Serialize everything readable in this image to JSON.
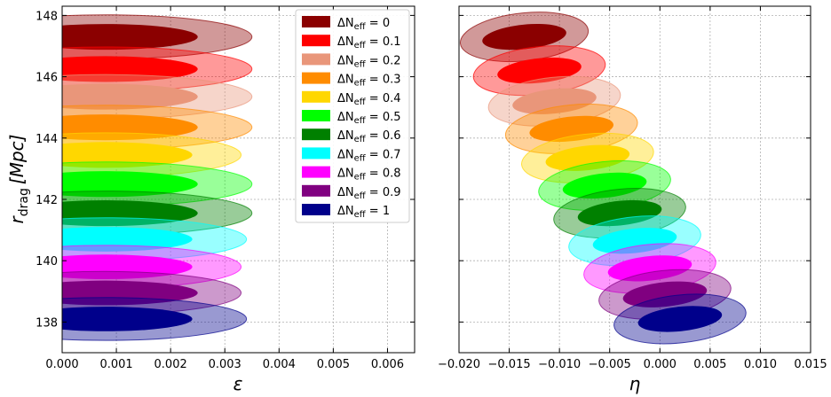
{
  "chart_data": [
    {
      "type": "contour",
      "panel": "left",
      "xlabel": "ε",
      "ylabel_main": "r",
      "ylabel_sub": "drag",
      "ylabel_unit": "[Mpc]",
      "xlim": [
        0.0,
        0.0065
      ],
      "ylim": [
        137.0,
        148.3
      ],
      "xticks": [
        "0.000",
        "0.001",
        "0.002",
        "0.003",
        "0.004",
        "0.005",
        "0.006"
      ],
      "xtick_values": [
        0,
        0.001,
        0.002,
        0.003,
        0.004,
        0.005,
        0.006
      ],
      "yticks": [
        "138",
        "140",
        "142",
        "144",
        "146",
        "148"
      ],
      "ytick_values": [
        138,
        140,
        142,
        144,
        146,
        148
      ],
      "grid": true,
      "legend_position": "top-right",
      "series": [
        {
          "name": "ΔN_eff = 0",
          "label_sym": "ΔN",
          "label_sub": "eff",
          "label_val": " = 0",
          "color": "#8b0000",
          "x_center": 0.0008,
          "y_center": 147.3,
          "x_1sigma": 0.0017,
          "y_1sigma": 0.42,
          "x_2sigma": 0.0027,
          "y_2sigma": 0.72
        },
        {
          "name": "ΔN_eff = 0.1",
          "label_sym": "ΔN",
          "label_sub": "eff",
          "label_val": " = 0.1",
          "color": "#ff0000",
          "x_center": 0.0008,
          "y_center": 146.25,
          "x_1sigma": 0.0017,
          "y_1sigma": 0.42,
          "x_2sigma": 0.0027,
          "y_2sigma": 0.72
        },
        {
          "name": "ΔN_eff = 0.2",
          "label_sym": "ΔN",
          "label_sub": "eff",
          "label_val": " = 0.2",
          "color": "#e9967a",
          "x_center": 0.0008,
          "y_center": 145.35,
          "x_1sigma": 0.0017,
          "y_1sigma": 0.42,
          "x_2sigma": 0.0027,
          "y_2sigma": 0.72
        },
        {
          "name": "ΔN_eff = 0.3",
          "label_sym": "ΔN",
          "label_sub": "eff",
          "label_val": " = 0.3",
          "color": "#ff8c00",
          "x_center": 0.0008,
          "y_center": 144.35,
          "x_1sigma": 0.0017,
          "y_1sigma": 0.42,
          "x_2sigma": 0.0027,
          "y_2sigma": 0.72
        },
        {
          "name": "ΔN_eff = 0.4",
          "label_sym": "ΔN",
          "label_sub": "eff",
          "label_val": " = 0.4",
          "color": "#ffd700",
          "x_center": 0.0008,
          "y_center": 143.45,
          "x_1sigma": 0.0016,
          "y_1sigma": 0.42,
          "x_2sigma": 0.0025,
          "y_2sigma": 0.72
        },
        {
          "name": "ΔN_eff = 0.5",
          "label_sym": "ΔN",
          "label_sub": "eff",
          "label_val": " = 0.5",
          "color": "#00ff00",
          "x_center": 0.0008,
          "y_center": 142.5,
          "x_1sigma": 0.0017,
          "y_1sigma": 0.42,
          "x_2sigma": 0.0027,
          "y_2sigma": 0.72
        },
        {
          "name": "ΔN_eff = 0.6",
          "label_sym": "ΔN",
          "label_sub": "eff",
          "label_val": " = 0.6",
          "color": "#008000",
          "x_center": 0.0008,
          "y_center": 141.55,
          "x_1sigma": 0.0017,
          "y_1sigma": 0.42,
          "x_2sigma": 0.0027,
          "y_2sigma": 0.72
        },
        {
          "name": "ΔN_eff = 0.7",
          "label_sym": "ΔN",
          "label_sub": "eff",
          "label_val": " = 0.7",
          "color": "#00ffff",
          "x_center": 0.0008,
          "y_center": 140.7,
          "x_1sigma": 0.0016,
          "y_1sigma": 0.4,
          "x_2sigma": 0.0026,
          "y_2sigma": 0.7
        },
        {
          "name": "ΔN_eff = 0.8",
          "label_sym": "ΔN",
          "label_sub": "eff",
          "label_val": " = 0.8",
          "color": "#ff00ff",
          "x_center": 0.0008,
          "y_center": 139.8,
          "x_1sigma": 0.0016,
          "y_1sigma": 0.4,
          "x_2sigma": 0.0025,
          "y_2sigma": 0.7
        },
        {
          "name": "ΔN_eff = 0.9",
          "label_sym": "ΔN",
          "label_sub": "eff",
          "label_val": " = 0.9",
          "color": "#800080",
          "x_center": 0.0008,
          "y_center": 138.95,
          "x_1sigma": 0.0017,
          "y_1sigma": 0.4,
          "x_2sigma": 0.0025,
          "y_2sigma": 0.7
        },
        {
          "name": "ΔN_eff = 1",
          "label_sym": "ΔN",
          "label_sub": "eff",
          "label_val": " = 1",
          "color": "#00008b",
          "x_center": 0.0008,
          "y_center": 138.1,
          "x_1sigma": 0.0016,
          "y_1sigma": 0.4,
          "x_2sigma": 0.0026,
          "y_2sigma": 0.7
        }
      ]
    },
    {
      "type": "contour",
      "panel": "right",
      "xlabel": "η",
      "xlim": [
        -0.02,
        0.015
      ],
      "ylim": [
        137.0,
        148.3
      ],
      "xticks": [
        "−0.020",
        "−0.015",
        "−0.010",
        "−0.005",
        "0.000",
        "0.005",
        "0.010",
        "0.015"
      ],
      "xtick_values": [
        -0.02,
        -0.015,
        -0.01,
        -0.005,
        0,
        0.005,
        0.01,
        0.015
      ],
      "ytick_values": [
        138,
        140,
        142,
        144,
        146,
        148
      ],
      "grid": true,
      "series": [
        {
          "name": "ΔN_eff = 0",
          "color": "#8b0000",
          "x_center": -0.0135,
          "y_center": 147.3,
          "x_1sigma": 0.0042,
          "y_1sigma": 0.4,
          "x_2sigma": 0.0064,
          "y_2sigma": 0.78
        },
        {
          "name": "ΔN_eff = 0.1",
          "color": "#ff0000",
          "x_center": -0.012,
          "y_center": 146.2,
          "x_1sigma": 0.0042,
          "y_1sigma": 0.4,
          "x_2sigma": 0.0066,
          "y_2sigma": 0.78
        },
        {
          "name": "ΔN_eff = 0.2",
          "color": "#e9967a",
          "x_center": -0.0105,
          "y_center": 145.2,
          "x_1sigma": 0.0042,
          "y_1sigma": 0.4,
          "x_2sigma": 0.0066,
          "y_2sigma": 0.78
        },
        {
          "name": "ΔN_eff = 0.3",
          "color": "#ff8c00",
          "x_center": -0.0088,
          "y_center": 144.3,
          "x_1sigma": 0.0042,
          "y_1sigma": 0.4,
          "x_2sigma": 0.0066,
          "y_2sigma": 0.78
        },
        {
          "name": "ΔN_eff = 0.4",
          "color": "#ffd700",
          "x_center": -0.0072,
          "y_center": 143.35,
          "x_1sigma": 0.0042,
          "y_1sigma": 0.4,
          "x_2sigma": 0.0066,
          "y_2sigma": 0.78
        },
        {
          "name": "ΔN_eff = 0.5",
          "color": "#00ff00",
          "x_center": -0.0055,
          "y_center": 142.45,
          "x_1sigma": 0.0042,
          "y_1sigma": 0.4,
          "x_2sigma": 0.0066,
          "y_2sigma": 0.78
        },
        {
          "name": "ΔN_eff = 0.6",
          "color": "#008000",
          "x_center": -0.004,
          "y_center": 141.55,
          "x_1sigma": 0.0042,
          "y_1sigma": 0.4,
          "x_2sigma": 0.0066,
          "y_2sigma": 0.78
        },
        {
          "name": "ΔN_eff = 0.7",
          "color": "#00ffff",
          "x_center": -0.0025,
          "y_center": 140.65,
          "x_1sigma": 0.0042,
          "y_1sigma": 0.4,
          "x_2sigma": 0.0066,
          "y_2sigma": 0.78
        },
        {
          "name": "ΔN_eff = 0.8",
          "color": "#ff00ff",
          "x_center": -0.001,
          "y_center": 139.75,
          "x_1sigma": 0.0042,
          "y_1sigma": 0.4,
          "x_2sigma": 0.0066,
          "y_2sigma": 0.78
        },
        {
          "name": "ΔN_eff = 0.9",
          "color": "#800080",
          "x_center": 0.0005,
          "y_center": 138.9,
          "x_1sigma": 0.0042,
          "y_1sigma": 0.4,
          "x_2sigma": 0.0066,
          "y_2sigma": 0.78
        },
        {
          "name": "ΔN_eff = 1",
          "color": "#00008b",
          "x_center": 0.002,
          "y_center": 138.1,
          "x_1sigma": 0.0042,
          "y_1sigma": 0.4,
          "x_2sigma": 0.0066,
          "y_2sigma": 0.78
        }
      ]
    }
  ]
}
